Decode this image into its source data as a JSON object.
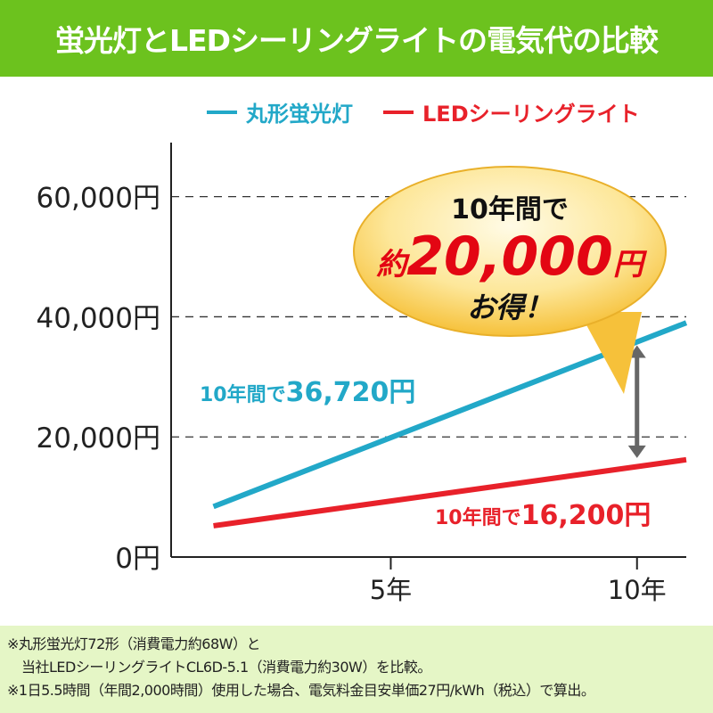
{
  "header": {
    "title": "蛍光灯とLEDシーリングライトの電気代の比較"
  },
  "chart_data": {
    "type": "line",
    "title": "蛍光灯とLEDシーリングライトの電気代の比較",
    "xlabel": "",
    "ylabel": "",
    "xlim": [
      0.54,
      11.0
    ],
    "ylim": [
      0,
      69000
    ],
    "xticks": [
      {
        "value": 5,
        "label": "5年"
      },
      {
        "value": 10,
        "label": "10年"
      }
    ],
    "yticks": [
      {
        "value": 0,
        "label": "0円"
      },
      {
        "value": 20000,
        "label": "20,000円"
      },
      {
        "value": 40000,
        "label": "40,000円"
      },
      {
        "value": 60000,
        "label": "60,000円"
      }
    ],
    "grid": "dashed horizontal at 20,000 / 40,000 / 60,000",
    "legend": "top",
    "series": [
      {
        "name": "丸形蛍光灯",
        "color": "#22a8c8",
        "points": [
          [
            1.4,
            8400
          ],
          [
            11,
            39000
          ]
        ],
        "label": "10年間で36,720円",
        "label_prefix": "10年間で",
        "label_value": "36,720円"
      },
      {
        "name": "LEDシーリングライト",
        "color": "#e8212a",
        "points": [
          [
            1.4,
            5200
          ],
          [
            11,
            16200
          ]
        ],
        "label": "10年間で16,200円",
        "label_prefix": "10年間で",
        "label_value": "16,200円"
      }
    ],
    "annotation": {
      "line1": "10年間で",
      "prefix": "約",
      "amount": "20,000",
      "unit": "円",
      "line3": "お得！"
    },
    "difference_arrow": {
      "x": 10,
      "from": 15300,
      "to": 36720,
      "color": "#666666"
    }
  },
  "notes": [
    "※丸形蛍光灯72形（消費電力約68W）と",
    "当社LEDシーリングライトCL6D-5.1（消費電力約30W）を比較。",
    "※1日5.5時間（年間2,000時間）使用した場合、電気料金目安単価27円/kWh（税込）で算出。"
  ]
}
